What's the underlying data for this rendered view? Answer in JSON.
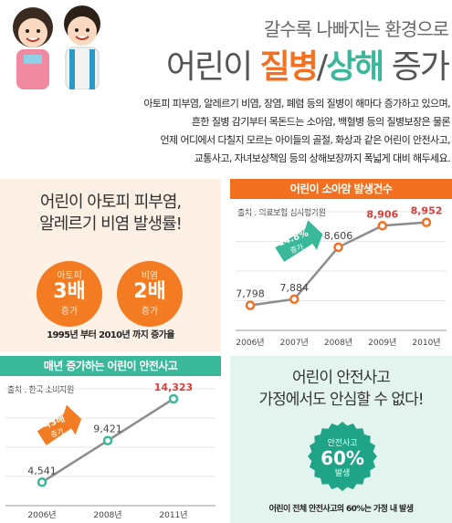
{
  "header": {
    "subtitle": "갈수록 나빠지는 환경으로",
    "title_pre": "어린이 ",
    "title_hl1": "질병",
    "title_sep": "/",
    "title_hl2": "상해",
    "title_post": " 증가",
    "intro": [
      "아토피 피부염, 알레르기 비염, 장염, 폐렴 등의 질병이 해마다 증가하고 있으며,",
      "흔한 질병 감기부터 목돈드는 소아암, 백혈병 등의 질병보장은 물론",
      "언제 어디에서 다칠지 모르는 아이들의 골절, 화상과 같은 어린이 안전사고,",
      "교통사고, 자녀보상책임 등의 상해보장까지 폭넓게 대비 해두세요."
    ]
  },
  "atopy": {
    "head_line1": "어린이 아토피 피부염,",
    "head_line2": "알레르기 비염 발생률!",
    "badges": [
      {
        "top": "아토피",
        "big": "3배",
        "bottom": "증가"
      },
      {
        "top": "비염",
        "big": "2배",
        "bottom": "증가"
      }
    ],
    "caption": "1995년 부터 2010년 까지 증가율"
  },
  "cancer": {
    "bar_title": "어린이 소아암 발생건수",
    "source": "출처 : 의료보험 심사평가원",
    "arrow_line1": "14.8%",
    "arrow_line2": "증가"
  },
  "accident": {
    "bar_title": "매년 증가하는 어린이 안전사고",
    "source": "출처 : 한국 소비자원",
    "arrow_line1": "약3배",
    "arrow_line2": "증가"
  },
  "home": {
    "head_line1": "어린이 안전사고",
    "head_line2": "가정에서도 안심할 수 없다!",
    "burst_top": "안전사고",
    "burst_big": "60%",
    "burst_bottom": "발생",
    "caption": "어린이 전체 안전사고의 60%는 가정 내 발생"
  },
  "colors": {
    "orange": "#f37021",
    "green": "#39b89a",
    "red": "#e53935",
    "line": "#8c8c8c"
  },
  "chart_data": [
    {
      "type": "line",
      "title": "어린이 소아암 발생건수",
      "categories": [
        "2006년",
        "2007년",
        "2008년",
        "2009년",
        "2010년"
      ],
      "values": [
        7798,
        7884,
        8606,
        8906,
        8952
      ],
      "value_labels": [
        "7,798",
        "7,884",
        "8,606",
        "8,906",
        "8,952"
      ],
      "highlight": [
        false,
        false,
        false,
        true,
        true
      ],
      "ylim": [
        7500,
        9100
      ],
      "grid": true
    },
    {
      "type": "line",
      "title": "매년 증가하는 어린이 안전사고",
      "categories": [
        "2006년",
        "2008년",
        "2011년"
      ],
      "values": [
        4541,
        9421,
        14323
      ],
      "value_labels": [
        "4,541",
        "9,421",
        "14,323"
      ],
      "highlight": [
        false,
        false,
        true
      ],
      "ylim": [
        2000,
        15500
      ],
      "grid": true
    }
  ]
}
